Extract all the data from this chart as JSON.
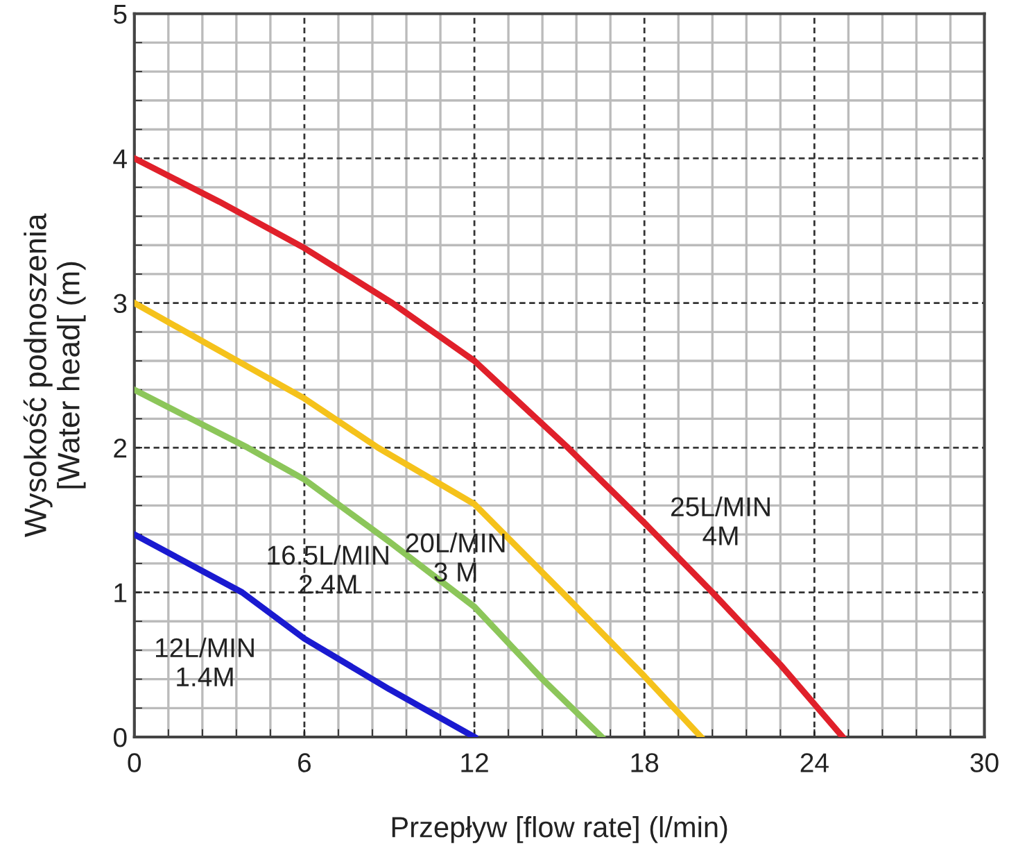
{
  "chart_data": {
    "type": "line",
    "xlabel": "Przepływ [flow rate] (l/min)",
    "ylabel": "Wysokość podnoszenia\n[Water head[ (m)",
    "xlim": [
      0,
      30
    ],
    "ylim": [
      0,
      5
    ],
    "xticks": [
      0,
      6,
      12,
      18,
      24,
      30
    ],
    "yticks": [
      0,
      1,
      2,
      3,
      4,
      5
    ],
    "grid": true,
    "legend": false,
    "marker": "none",
    "line_style": "solid",
    "series": [
      {
        "name": "25L/MIN\n4M",
        "color": "#e0202a",
        "x": [
          0,
          3,
          6,
          9.1,
          12,
          15.3,
          18,
          20.4,
          22.8,
          25
        ],
        "values": [
          4,
          3.7,
          3.38,
          3.0,
          2.6,
          2.0,
          1.48,
          1.0,
          0.5,
          0
        ]
      },
      {
        "name": "20L/MIN\n3 M",
        "color": "#f5c21b",
        "x": [
          0,
          3,
          6,
          8.6,
          12,
          15.1,
          18,
          20
        ],
        "values": [
          3,
          2.67,
          2.34,
          2.0,
          1.61,
          1.0,
          0.42,
          0
        ]
      },
      {
        "name": "16.5L/MIN\n2.4M",
        "color": "#8cc65a",
        "x": [
          0,
          2,
          4,
          6,
          9,
          12,
          14.4,
          16.5
        ],
        "values": [
          2.4,
          2.2,
          2.0,
          1.78,
          1.35,
          0.9,
          0.4,
          0
        ]
      },
      {
        "name": "12L/MIN\n1.4M",
        "color": "#1a1ad0",
        "x": [
          0,
          3.8,
          6,
          9,
          12
        ],
        "values": [
          1.4,
          1.0,
          0.68,
          0.33,
          0
        ]
      }
    ]
  }
}
